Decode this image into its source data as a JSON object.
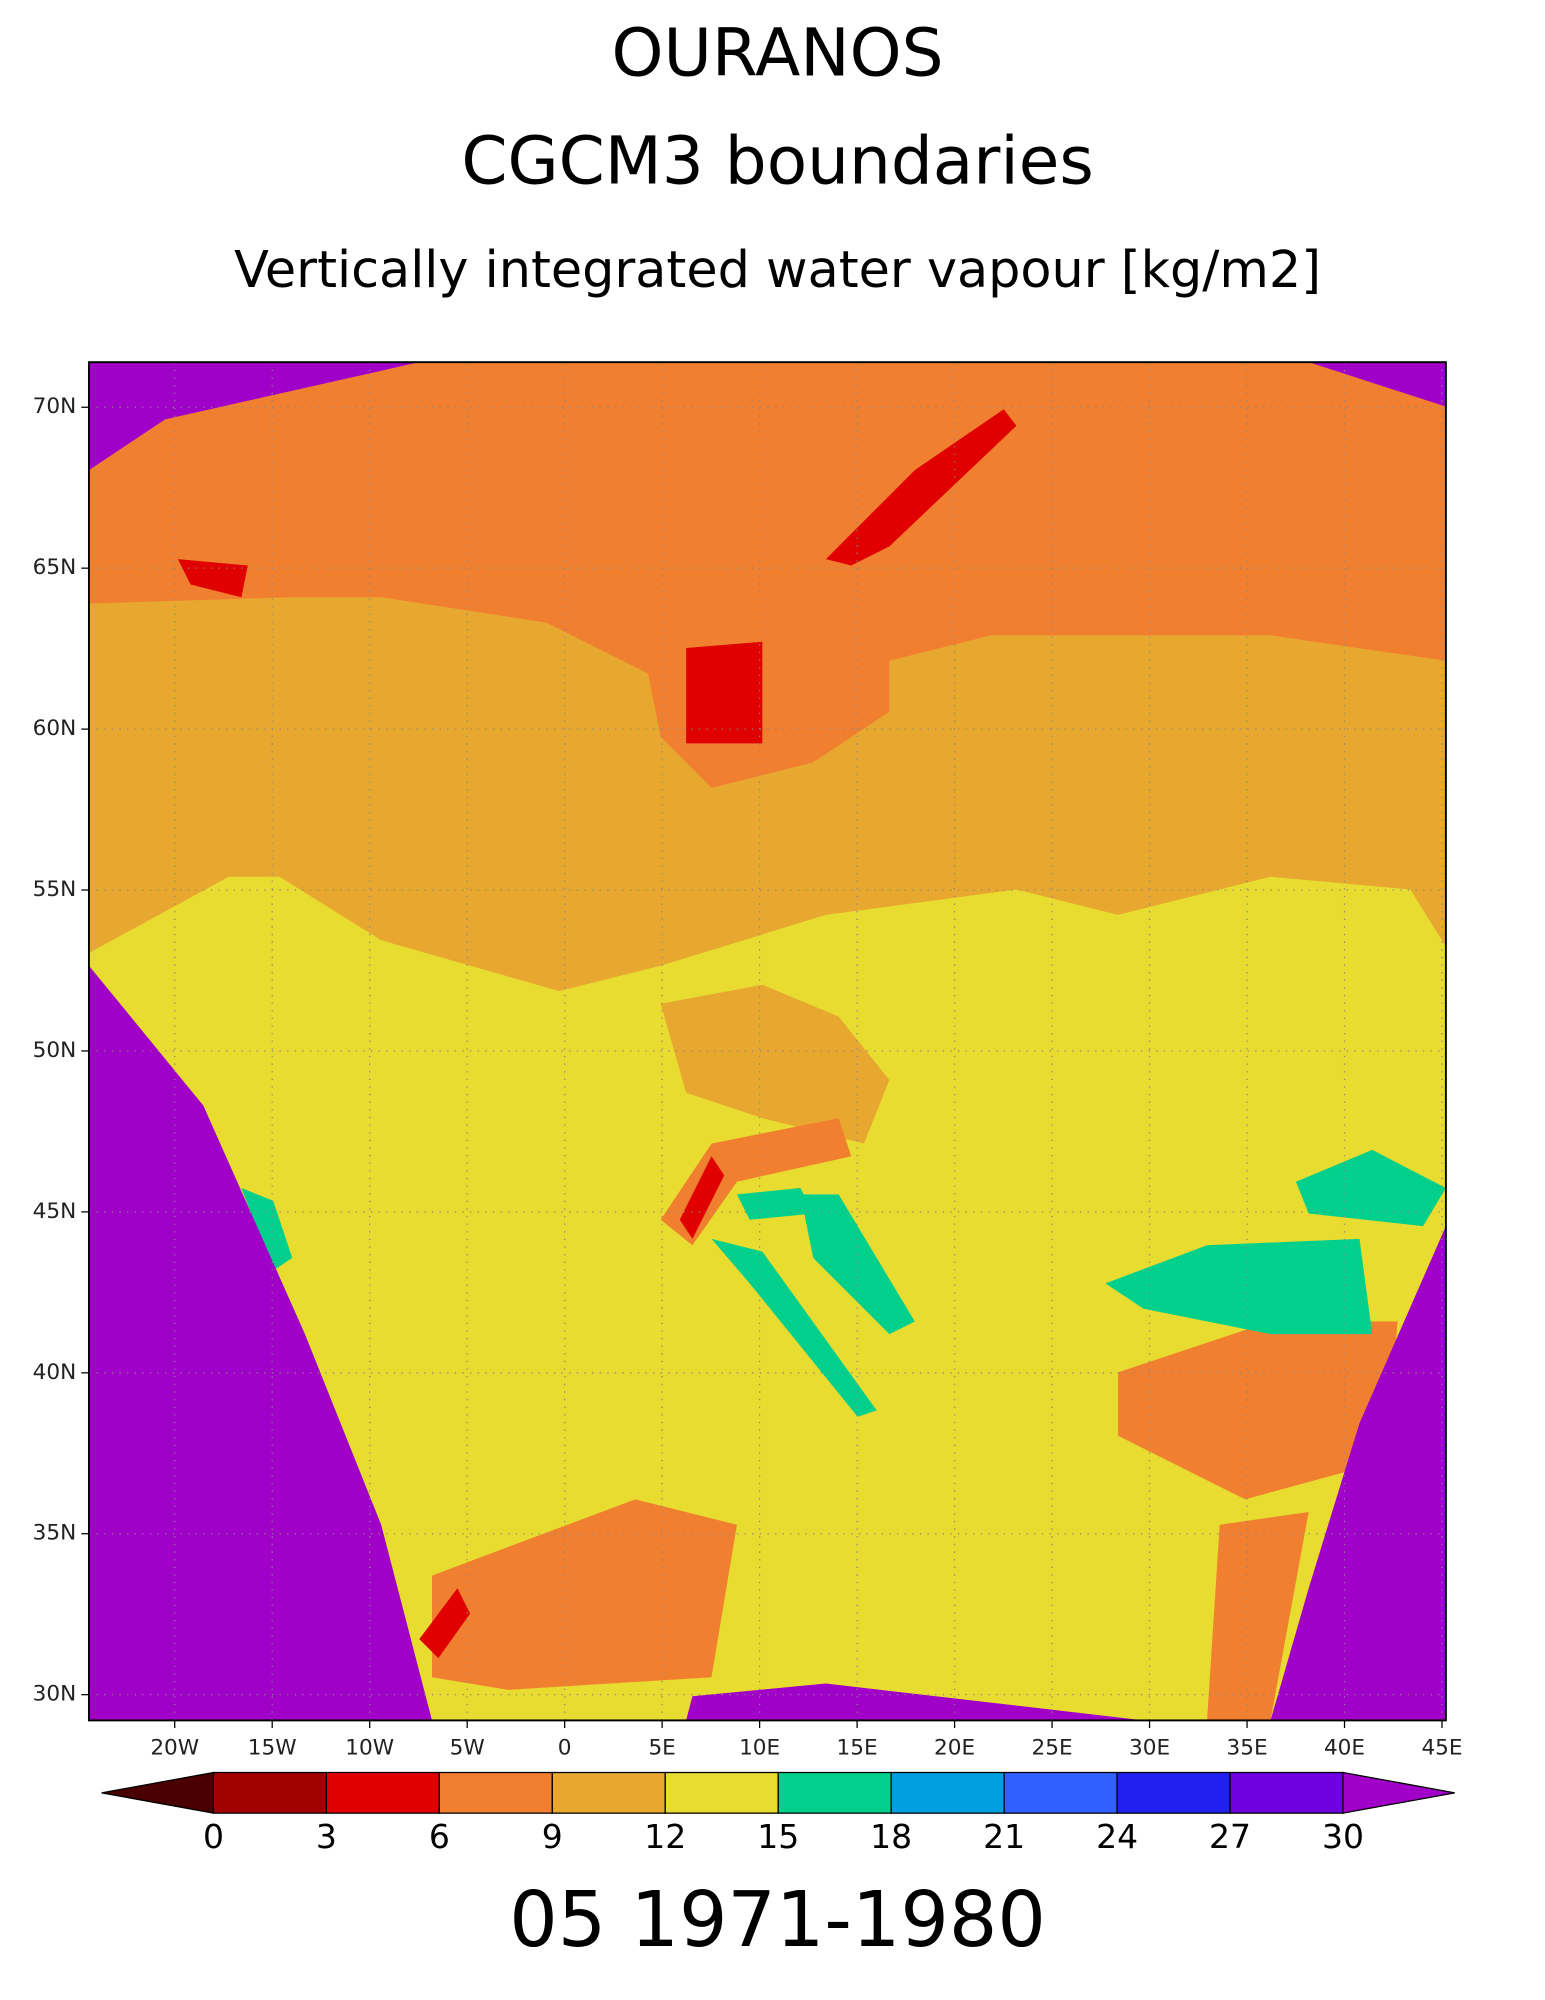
{
  "title": "OURANOS",
  "subtitle": "CGCM3 boundaries",
  "variable": "Vertically integrated water vapour [kg/m2]",
  "map": {
    "xlim": [
      -24.4,
      45.2
    ],
    "ylim": [
      29.2,
      71.4
    ],
    "grid": true,
    "yticks": [
      {
        "value": 70,
        "label": "70N"
      },
      {
        "value": 65,
        "label": "65N"
      },
      {
        "value": 60,
        "label": "60N"
      },
      {
        "value": 55,
        "label": "55N"
      },
      {
        "value": 50,
        "label": "50N"
      },
      {
        "value": 45,
        "label": "45N"
      },
      {
        "value": 40,
        "label": "40N"
      },
      {
        "value": 35,
        "label": "35N"
      },
      {
        "value": 30,
        "label": "30N"
      }
    ],
    "xticks": [
      {
        "value": -20,
        "label": "20W"
      },
      {
        "value": -15,
        "label": "15W"
      },
      {
        "value": -10,
        "label": "10W"
      },
      {
        "value": -5,
        "label": "5W"
      },
      0,
      {
        "value": 5,
        "label": "5E"
      },
      {
        "value": 10,
        "label": "10E"
      },
      {
        "value": 15,
        "label": "15E"
      },
      {
        "value": 20,
        "label": "20E"
      },
      {
        "value": 25,
        "label": "25E"
      },
      {
        "value": 30,
        "label": "30E"
      },
      {
        "value": 35,
        "label": "35E"
      },
      {
        "value": 40,
        "label": "40E"
      },
      {
        "value": 45,
        "label": "45E"
      }
    ]
  },
  "colorbar": {
    "levels": [
      0,
      3,
      6,
      9,
      12,
      15,
      18,
      21,
      24,
      27,
      30
    ],
    "colors": [
      "#4a0000",
      "#a00000",
      "#e00000",
      "#f08030",
      "#e8a830",
      "#e8dc30",
      "#00d08c",
      "#00a0e0",
      "#3060ff",
      "#2020f0",
      "#7000e0",
      "#a000c8"
    ]
  },
  "footer": "05 1971-1980"
}
